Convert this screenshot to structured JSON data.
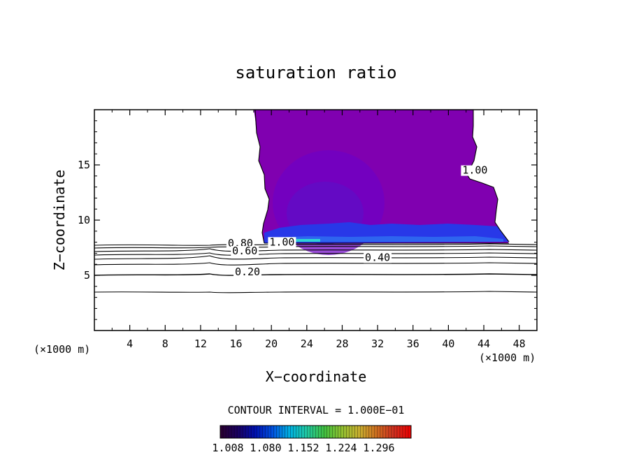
{
  "chart_data": {
    "type": "contour",
    "title": "saturation ratio",
    "xlabel": "X−coordinate",
    "ylabel": "Z−coordinate",
    "x_unit_left": "(×1000 m)",
    "x_unit_right": "(×1000 m)",
    "xlim": [
      0,
      50
    ],
    "ylim": [
      0,
      20
    ],
    "xticks": [
      4,
      8,
      12,
      16,
      20,
      24,
      28,
      32,
      36,
      40,
      44,
      48
    ],
    "yticks": [
      5,
      10,
      15
    ],
    "contour_interval_text": "CONTOUR INTERVAL = 1.000E−01",
    "contour_labels": [
      {
        "text": "1.00",
        "x": 43,
        "y": 14.2
      },
      {
        "text": "0.80",
        "x": 16.5,
        "y": 7.6
      },
      {
        "text": "1.00",
        "x": 21.2,
        "y": 7.7
      },
      {
        "text": "0.60",
        "x": 17.0,
        "y": 6.9
      },
      {
        "text": "0.40",
        "x": 32.0,
        "y": 6.3
      },
      {
        "text": "0.20",
        "x": 17.3,
        "y": 5.0
      }
    ],
    "colorbar": {
      "tick_labels": [
        "1.008",
        "1.080",
        "1.152",
        "1.224",
        "1.296"
      ],
      "colors": [
        "#2a0030",
        "#1a0060",
        "#0010b0",
        "#0050e0",
        "#00b0e0",
        "#20c8a0",
        "#40c040",
        "#90c030",
        "#c8b030",
        "#d07020",
        "#d03020",
        "#f00000"
      ]
    },
    "colors": {
      "saturated_region": "#8000b0",
      "core_region": "#6a00c8",
      "base_layer": "#2030e0"
    }
  }
}
